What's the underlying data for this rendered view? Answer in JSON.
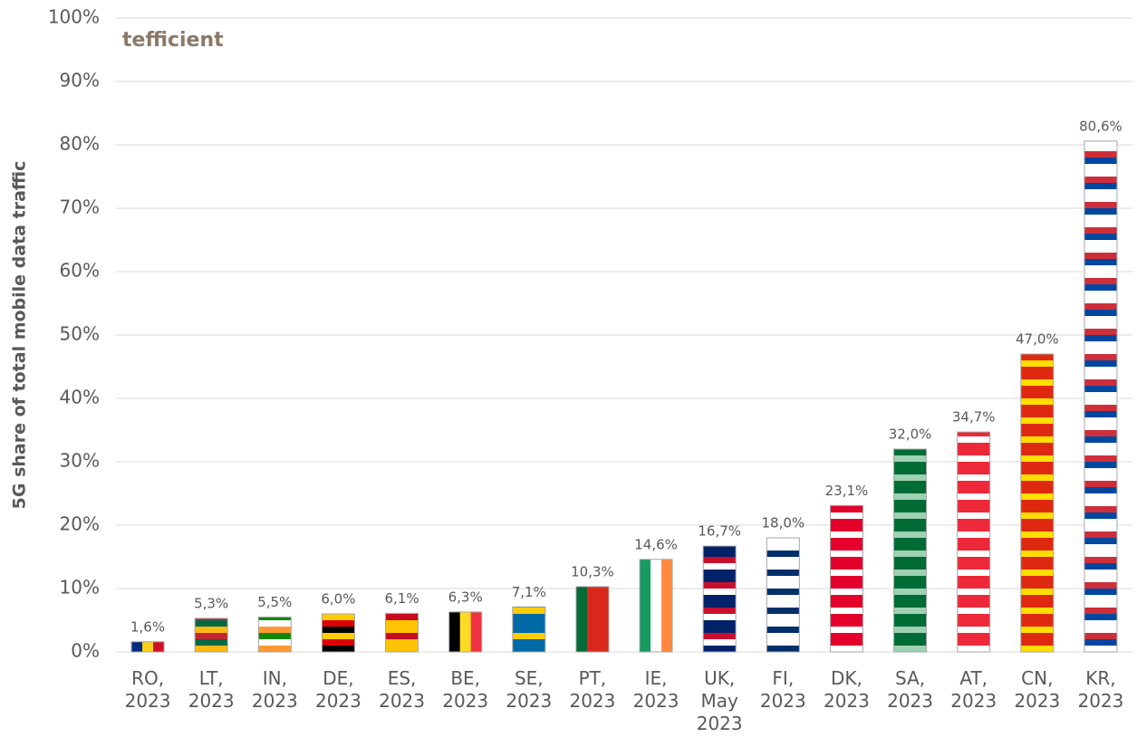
{
  "chart_data": {
    "type": "bar",
    "logo": "tefficient",
    "y_label": "5G share of total mobile data traffic",
    "categories": [
      "RO, 2023",
      "LT, 2023",
      "IN, 2023",
      "DE, 2023",
      "ES, 2023",
      "BE, 2023",
      "SE, 2023",
      "PT, 2023",
      "IE, 2023",
      "UK, May 2023",
      "FI, 2023",
      "DK, 2023",
      "SA, 2023",
      "AT, 2023",
      "CN, 2023",
      "KR, 2023"
    ],
    "values": [
      1.6,
      5.3,
      5.5,
      6.0,
      6.1,
      6.3,
      7.1,
      10.3,
      14.6,
      16.7,
      18.0,
      23.1,
      32.0,
      34.7,
      47.0,
      80.6
    ],
    "value_labels": [
      "1,6%",
      "5,3%",
      "5,5%",
      "6,0%",
      "6,1%",
      "6,3%",
      "7,1%",
      "10,3%",
      "14,6%",
      "16,7%",
      "18,0%",
      "23,1%",
      "32,0%",
      "34,7%",
      "47,0%",
      "80,6%"
    ],
    "flags": [
      {
        "dir": "v",
        "colors": [
          "#002b7f",
          "#fcd116",
          "#ce1126"
        ]
      },
      {
        "dir": "h",
        "colors": [
          "#c1272d",
          "#006a44",
          "#fdb913"
        ]
      },
      {
        "dir": "h",
        "colors": [
          "#138808",
          "#ffffff",
          "#ff9933"
        ]
      },
      {
        "dir": "h",
        "colors": [
          "#ffce00",
          "#dd0000",
          "#000000"
        ]
      },
      {
        "dir": "h",
        "colors": [
          "#c60b1e",
          "#ffc400",
          "#ffc400"
        ]
      },
      {
        "dir": "v",
        "colors": [
          "#000000",
          "#fdda24",
          "#ef3340"
        ]
      },
      {
        "dir": "h",
        "colors": [
          "#006aa7",
          "#fecc00",
          "#006aa7",
          "#006aa7"
        ]
      },
      {
        "dir": "v",
        "colors": [
          "#046a38",
          "#da291c",
          "#da291c"
        ]
      },
      {
        "dir": "v",
        "colors": [
          "#169b62",
          "#ffffff",
          "#ff883e"
        ]
      },
      {
        "dir": "h",
        "colors": [
          "#012169",
          "#c8102e",
          "#ffffff",
          "#012169"
        ]
      },
      {
        "dir": "h",
        "colors": [
          "#ffffff",
          "#ffffff",
          "#002f6c"
        ]
      },
      {
        "dir": "h",
        "colors": [
          "#e4002b",
          "#e4002b",
          "#ffffff"
        ]
      },
      {
        "dir": "h",
        "colors": [
          "#006c35",
          "#006c35",
          "#9fd1b3"
        ]
      },
      {
        "dir": "h",
        "colors": [
          "#ed2939",
          "#ed2939",
          "#ffffff"
        ]
      },
      {
        "dir": "h",
        "colors": [
          "#de2910",
          "#de2910",
          "#ffde00"
        ]
      },
      {
        "dir": "h",
        "colors": [
          "#ffffff",
          "#cd2e3a",
          "#0047a0",
          "#ffffff"
        ]
      }
    ],
    "ylim": [
      0,
      100
    ],
    "yticks": [
      {
        "value": 0,
        "label": "0%"
      },
      {
        "value": 10,
        "label": "10%"
      },
      {
        "value": 20,
        "label": "20%"
      },
      {
        "value": 30,
        "label": "30%"
      },
      {
        "value": 40,
        "label": "40%"
      },
      {
        "value": 50,
        "label": "50%"
      },
      {
        "value": 60,
        "label": "60%"
      },
      {
        "value": 70,
        "label": "70%"
      },
      {
        "value": 80,
        "label": "80%"
      },
      {
        "value": 90,
        "label": "90%"
      },
      {
        "value": 100,
        "label": "100%"
      }
    ],
    "grid": true
  }
}
